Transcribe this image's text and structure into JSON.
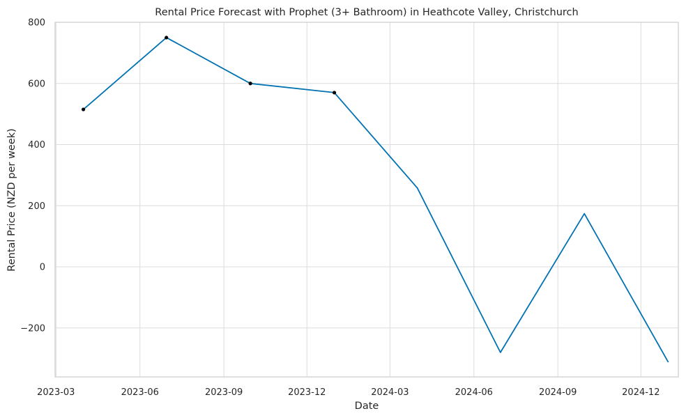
{
  "chart_data": {
    "type": "line",
    "title": "Rental Price Forecast with Prophet (3+ Bathroom) in Heathcote Valley, Christchurch",
    "xlabel": "Date",
    "ylabel": "Rental Price (NZD per week)",
    "x_ticks": [
      "2023-03",
      "2023-06",
      "2023-09",
      "2023-12",
      "2024-03",
      "2024-06",
      "2024-09",
      "2024-12"
    ],
    "y_ticks": [
      800,
      600,
      400,
      200,
      0,
      -200
    ],
    "y_tick_labels": [
      "800",
      "600",
      "400",
      "200",
      "0",
      "−200"
    ],
    "xlim": [
      "2023-02-28",
      "2025-01-11"
    ],
    "ylim": [
      -360,
      800
    ],
    "grid": true,
    "series": [
      {
        "kind": "forecast-line",
        "color": "#0072B2",
        "x": [
          "2023-03-31",
          "2023-06-30",
          "2023-09-30",
          "2023-12-31",
          "2024-03-31",
          "2024-06-30",
          "2024-09-30",
          "2024-12-31"
        ],
        "y": [
          515,
          750,
          600,
          570,
          258,
          -280,
          174,
          -312
        ]
      },
      {
        "kind": "observed-points",
        "color": "#000000",
        "x": [
          "2023-03-31",
          "2023-06-30",
          "2023-09-30",
          "2023-12-31"
        ],
        "y": [
          515,
          750,
          600,
          570
        ]
      }
    ]
  }
}
